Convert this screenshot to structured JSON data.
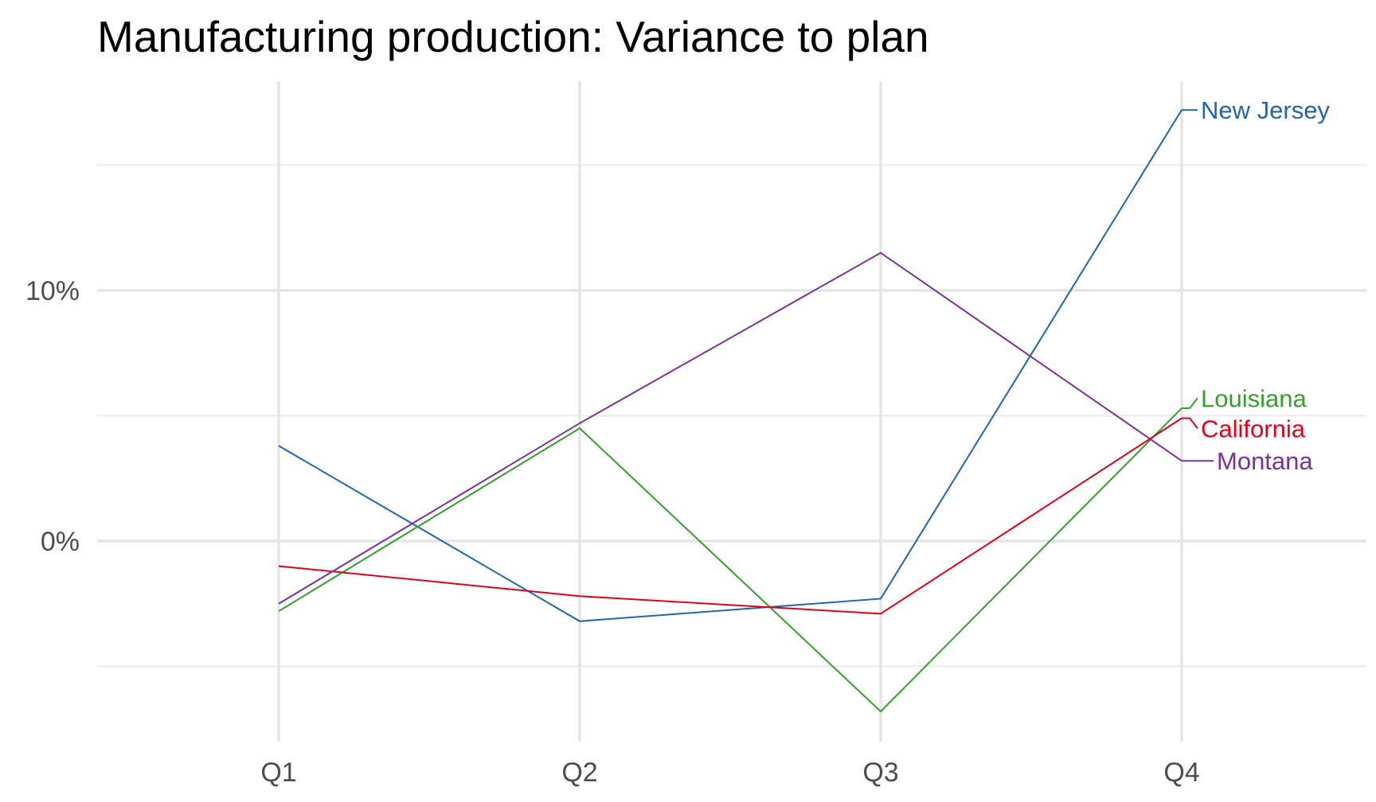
{
  "chart_data": {
    "type": "line",
    "title": "Manufacturing production: Variance to plan",
    "xlabel": "",
    "ylabel": "",
    "categories": [
      "Q1",
      "Q2",
      "Q3",
      "Q4"
    ],
    "y_tick_values": [
      0,
      10
    ],
    "y_tick_labels": [
      "0%",
      "10%"
    ],
    "ylim": [
      -8,
      18.5
    ],
    "grid": true,
    "legend": "direct labels at line ends (right)",
    "series": [
      {
        "name": "New Jersey",
        "color": "#2166ac",
        "values": [
          3.8,
          -3.2,
          -2.3,
          17.2
        ]
      },
      {
        "name": "Louisiana",
        "color": "#33a02c",
        "values": [
          -2.8,
          4.5,
          -6.8,
          5.3
        ]
      },
      {
        "name": "California",
        "color": "#e3001b",
        "values": [
          -1.0,
          -2.2,
          -2.9,
          4.9
        ]
      },
      {
        "name": "Montana",
        "color": "#7b3294",
        "values": [
          -2.5,
          4.7,
          11.5,
          3.2
        ]
      }
    ]
  }
}
